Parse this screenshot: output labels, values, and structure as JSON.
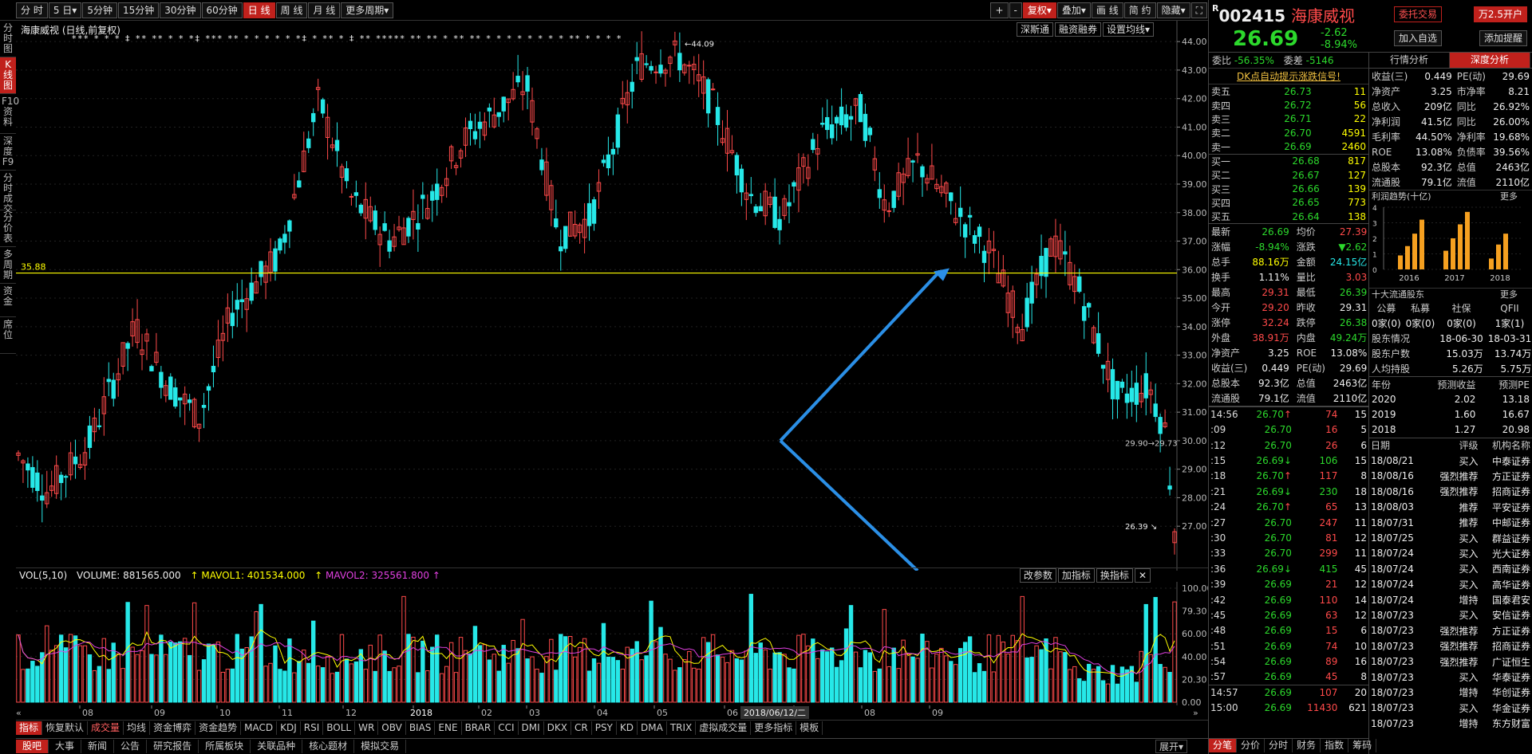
{
  "toolbar": {
    "periods": [
      "分 时",
      "5 日▾",
      "5分钟",
      "15分钟",
      "30分钟",
      "60分钟",
      "日 线",
      "周 线",
      "月 线",
      "更多周期▾"
    ],
    "right": [
      "+",
      "-",
      "复权▾",
      "叠加▾",
      "画 线",
      "简 约",
      "隐藏▾",
      "⛶"
    ]
  },
  "left_tabs": [
    "分时图",
    "K线图",
    "F10资料",
    "深度F9",
    "分时成交",
    "分价表",
    "多周期",
    "资金",
    "席位"
  ],
  "chart": {
    "title": "海康威视 (日线,前复权)",
    "top_buttons": [
      "深斯通",
      "融资融券",
      "设置均线▾"
    ],
    "hline_label": "35.88",
    "high_label": "44.09",
    "low_label": "26.39",
    "last_label": "29.90→29.73",
    "price_ticks": [
      "44.00",
      "43.00",
      "42.00",
      "41.00",
      "40.00",
      "39.00",
      "38.00",
      "37.00",
      "36.00",
      "35.00",
      "34.00",
      "33.00",
      "32.00",
      "31.00",
      "30.00",
      "29.00",
      "28.00",
      "27.00"
    ],
    "star_marks": "*** * * * ‡ ** ** * * *‡ *** ** * * * * * *‡ * ** * ‡ ** ***** ** ** * ** ** * * * * * * * * ** * * * *"
  },
  "volume": {
    "label": "VOL(5,10)",
    "volume": "VOLUME: 881565.000",
    "mavol1": "MAVOL1: 401534.000",
    "mavol2": "MAVOL2: 325561.800",
    "buttons": [
      "改参数",
      "加指标",
      "换指标",
      "✕"
    ],
    "ticks": [
      "100.00",
      "79.30",
      "60.00",
      "40.00",
      "20.30",
      "0.00"
    ]
  },
  "xaxis": {
    "labels": [
      "08",
      "09",
      "10",
      "11",
      "12",
      "2018",
      "02",
      "03",
      "04",
      "05",
      "06",
      "07",
      "08",
      "09"
    ],
    "cursor_date": "2018/06/12/二"
  },
  "indicator_tabs": [
    "指标",
    "恢复默认",
    "成交量",
    "均线",
    "资金博弈",
    "资金趋势",
    "MACD",
    "KDJ",
    "RSI",
    "BOLL",
    "WR",
    "OBV",
    "BIAS",
    "ENE",
    "BRAR",
    "CCI",
    "DMI",
    "DKX",
    "CR",
    "PSY",
    "KD",
    "DMA",
    "TRIX",
    "虚拟成交量",
    "更多指标",
    "模板"
  ],
  "bottom_tabs": [
    "股吧",
    "大事",
    "新闻",
    "公告",
    "研究报告",
    "所属板块",
    "关联品种",
    "核心题材",
    "模拟交易"
  ],
  "bottom_right": [
    "展开▾"
  ],
  "stock": {
    "code": "002415",
    "code_prefix": "R",
    "name": "海康威视",
    "price": "26.69",
    "change": "-2.62",
    "pct": "-8.94%",
    "btn_trade": "委托交易",
    "btn_open": "万2.5开户",
    "btn_watch": "加入自选",
    "btn_alert": "添加提醒",
    "weibi_label": "委比",
    "weibi": "-56.35%",
    "weicha_label": "委差",
    "weicha": "-5146",
    "signal": "DK点自动提示涨跌信号!"
  },
  "asks": [
    {
      "l": "卖五",
      "p": "26.73",
      "v": "11"
    },
    {
      "l": "卖四",
      "p": "26.72",
      "v": "56"
    },
    {
      "l": "卖三",
      "p": "26.71",
      "v": "22"
    },
    {
      "l": "卖二",
      "p": "26.70",
      "v": "4591"
    },
    {
      "l": "卖一",
      "p": "26.69",
      "v": "2460"
    }
  ],
  "bids": [
    {
      "l": "买一",
      "p": "26.68",
      "v": "817"
    },
    {
      "l": "买二",
      "p": "26.67",
      "v": "127"
    },
    {
      "l": "买三",
      "p": "26.66",
      "v": "139"
    },
    {
      "l": "买四",
      "p": "26.65",
      "v": "773"
    },
    {
      "l": "买五",
      "p": "26.64",
      "v": "138"
    }
  ],
  "stats": [
    [
      "最新",
      "26.69",
      "均价",
      "27.39"
    ],
    [
      "涨幅",
      "-8.94%",
      "涨跌",
      "▼2.62"
    ],
    [
      "总手",
      "88.16万",
      "金额",
      "24.15亿"
    ],
    [
      "换手",
      "1.11%",
      "量比",
      "3.03"
    ],
    [
      "最高",
      "29.31",
      "最低",
      "26.39"
    ],
    [
      "今开",
      "29.20",
      "昨收",
      "29.31"
    ],
    [
      "涨停",
      "32.24",
      "跌停",
      "26.38"
    ],
    [
      "外盘",
      "38.91万",
      "内盘",
      "49.24万"
    ],
    [
      "净资产",
      "3.25",
      "ROE",
      "13.08%"
    ],
    [
      "收益(三)",
      "0.449",
      "PE(动)",
      "29.69"
    ],
    [
      "总股本",
      "92.3亿",
      "总值",
      "2463亿"
    ],
    [
      "流通股",
      "79.1亿",
      "流值",
      "2110亿"
    ]
  ],
  "ticks_list": [
    [
      "14:56",
      "26.70",
      "↑",
      "74",
      "15"
    ],
    [
      ":09",
      "26.70",
      "",
      "16",
      "5"
    ],
    [
      ":12",
      "26.70",
      "",
      "26",
      "6"
    ],
    [
      ":15",
      "26.69",
      "↓",
      "106",
      "15"
    ],
    [
      ":18",
      "26.70",
      "↑",
      "117",
      "8"
    ],
    [
      ":21",
      "26.69",
      "↓",
      "230",
      "18"
    ],
    [
      ":24",
      "26.70",
      "↑",
      "65",
      "13"
    ],
    [
      ":27",
      "26.70",
      "",
      "247",
      "11"
    ],
    [
      ":30",
      "26.70",
      "",
      "81",
      "12"
    ],
    [
      ":33",
      "26.70",
      "",
      "299",
      "11"
    ],
    [
      ":36",
      "26.69",
      "↓",
      "415",
      "45"
    ],
    [
      ":39",
      "26.69",
      "",
      "21",
      "12"
    ],
    [
      ":42",
      "26.69",
      "",
      "110",
      "14"
    ],
    [
      ":45",
      "26.69",
      "",
      "63",
      "12"
    ],
    [
      ":48",
      "26.69",
      "",
      "15",
      "6"
    ],
    [
      ":51",
      "26.69",
      "",
      "74",
      "10"
    ],
    [
      ":54",
      "26.69",
      "",
      "89",
      "16"
    ],
    [
      ":57",
      "26.69",
      "",
      "45",
      "8"
    ],
    [
      "14:57",
      "26.69",
      "",
      "107",
      "20"
    ],
    [
      "15:00",
      "26.69",
      "",
      "11430",
      "621"
    ]
  ],
  "right_tabs": [
    "行情分析",
    "深度分析"
  ],
  "fund": [
    [
      "收益(三)",
      "0.449",
      "PE(动)",
      "29.69"
    ],
    [
      "净资产",
      "3.25",
      "市净率",
      "8.21"
    ],
    [
      "总收入",
      "209亿",
      "同比",
      "26.92%"
    ],
    [
      "净利润",
      "41.5亿",
      "同比",
      "26.00%"
    ],
    [
      "毛利率",
      "44.50%",
      "净利率",
      "19.68%"
    ],
    [
      "ROE",
      "13.08%",
      "负债率",
      "39.56%"
    ],
    [
      "总股本",
      "92.3亿",
      "总值",
      "2463亿"
    ],
    [
      "流通股",
      "79.1亿",
      "流值",
      "2110亿"
    ]
  ],
  "profit": {
    "title": "利润趋势(十亿)",
    "more": "更多",
    "years": [
      "2016",
      "2017",
      "2018"
    ],
    "yticks": [
      "4",
      "3",
      "2",
      "1",
      "0"
    ],
    "values": [
      [
        0.9,
        1.5,
        2.3,
        3.2
      ],
      [
        1.2,
        2.0,
        2.9,
        3.7
      ],
      [
        0.7,
        1.6,
        2.3
      ]
    ]
  },
  "holders": {
    "title": "十大流通股东",
    "more": "更多",
    "cats": [
      "公募",
      "私募",
      "社保",
      "QFII"
    ],
    "vals": [
      "0家(0)",
      "0家(0)",
      "0家(0)",
      "1家(1)"
    ],
    "rows": [
      [
        "股东情况",
        "18-06-30",
        "18-03-31"
      ],
      [
        "股东户数",
        "15.03万",
        "13.74万"
      ],
      [
        "人均持股",
        "5.26万",
        "5.75万"
      ]
    ]
  },
  "forecast": {
    "head": [
      "年份",
      "预测收益",
      "预测PE"
    ],
    "rows": [
      [
        "2020",
        "2.02",
        "13.18"
      ],
      [
        "2019",
        "1.60",
        "16.67"
      ],
      [
        "2018",
        "1.27",
        "20.98"
      ]
    ]
  },
  "ratings": {
    "head": [
      "日期",
      "评级",
      "机构名称"
    ],
    "rows": [
      [
        "18/08/21",
        "买入",
        "中泰证券"
      ],
      [
        "18/08/16",
        "强烈推荐",
        "方正证券"
      ],
      [
        "18/08/16",
        "强烈推荐",
        "招商证券"
      ],
      [
        "18/08/03",
        "推荐",
        "平安证券"
      ],
      [
        "18/07/31",
        "推荐",
        "中邮证券"
      ],
      [
        "18/07/25",
        "买入",
        "群益证券"
      ],
      [
        "18/07/24",
        "买入",
        "光大证券"
      ],
      [
        "18/07/24",
        "买入",
        "西南证券"
      ],
      [
        "18/07/24",
        "买入",
        "高华证券"
      ],
      [
        "18/07/24",
        "增持",
        "国泰君安"
      ],
      [
        "18/07/23",
        "买入",
        "安信证券"
      ],
      [
        "18/07/23",
        "强烈推荐",
        "方正证券"
      ],
      [
        "18/07/23",
        "强烈推荐",
        "招商证券"
      ],
      [
        "18/07/23",
        "强烈推荐",
        "广证恒生"
      ],
      [
        "18/07/23",
        "买入",
        "华泰证券"
      ],
      [
        "18/07/23",
        "增持",
        "华创证券"
      ],
      [
        "18/07/23",
        "买入",
        "华金证券"
      ],
      [
        "18/07/23",
        "增持",
        "东方财富"
      ]
    ]
  },
  "footer_tabs": [
    "分笔",
    "分价",
    "分时",
    "财务",
    "指数",
    "筹码"
  ],
  "colors": {
    "up": "#ff4a4a",
    "down": "#26e8e8",
    "hline": "#ffff00",
    "arrow": "#2b8fe6",
    "accent": "#c0211c"
  }
}
